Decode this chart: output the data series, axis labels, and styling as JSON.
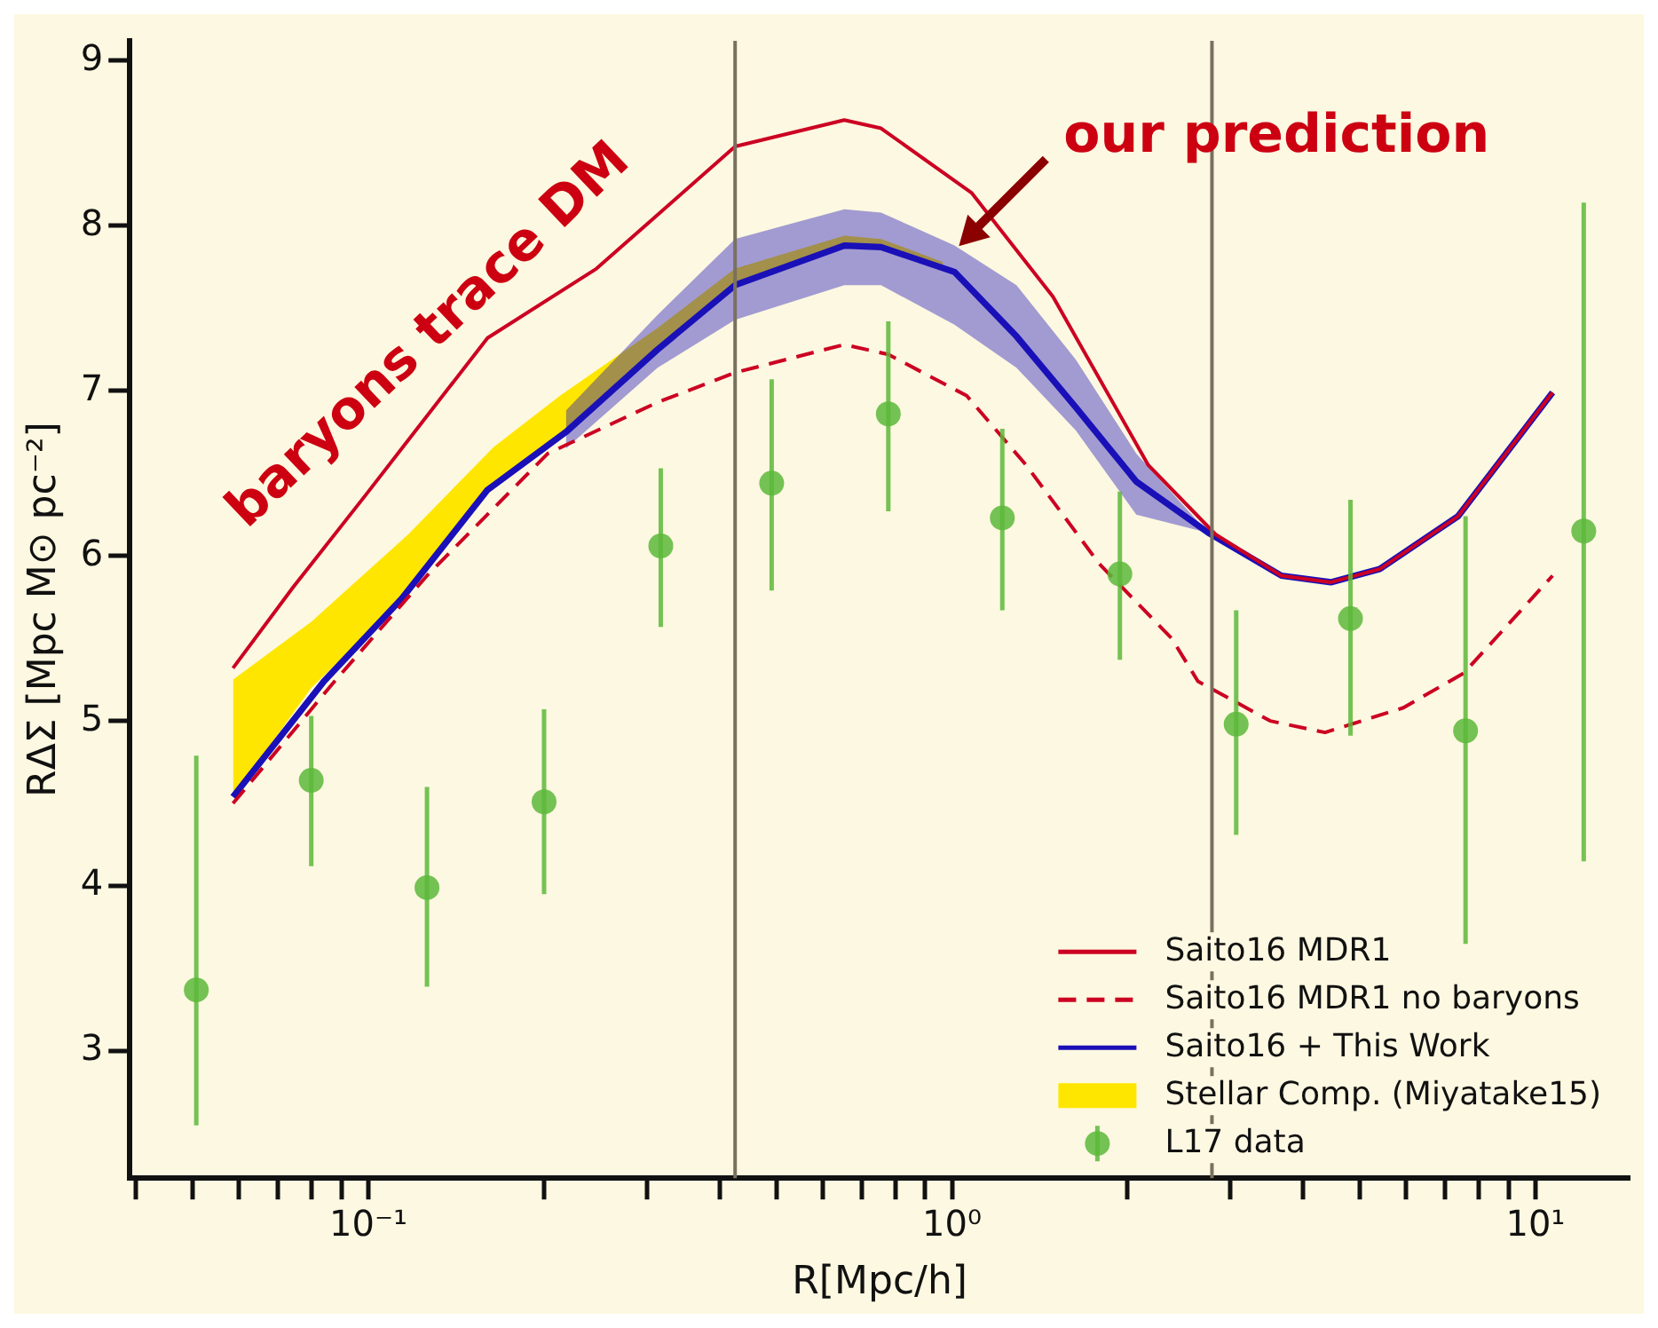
{
  "chart_data": {
    "type": "line",
    "xlabel": "R[Mpc/h]",
    "ylabel": "RΔΣ [Mpc M⊙ pc⁻²]",
    "log": "x",
    "xlim": [
      0.039,
      14.5
    ],
    "ylim": [
      2.23,
      9.12
    ],
    "xticks": [
      {
        "value": 0.04,
        "label": null
      },
      {
        "value": 0.05,
        "label": null
      },
      {
        "value": 0.06,
        "label": null
      },
      {
        "value": 0.07,
        "label": null
      },
      {
        "value": 0.08,
        "label": null
      },
      {
        "value": 0.09,
        "label": null
      },
      {
        "value": 0.1,
        "label": "10⁻¹"
      },
      {
        "value": 0.2,
        "label": null
      },
      {
        "value": 0.3,
        "label": null
      },
      {
        "value": 0.4,
        "label": null
      },
      {
        "value": 0.5,
        "label": null
      },
      {
        "value": 0.6,
        "label": null
      },
      {
        "value": 0.7,
        "label": null
      },
      {
        "value": 0.8,
        "label": null
      },
      {
        "value": 0.9,
        "label": null
      },
      {
        "value": 1,
        "label": "10⁰"
      },
      {
        "value": 2,
        "label": null
      },
      {
        "value": 3,
        "label": null
      },
      {
        "value": 4,
        "label": null
      },
      {
        "value": 5,
        "label": null
      },
      {
        "value": 6,
        "label": null
      },
      {
        "value": 7,
        "label": null
      },
      {
        "value": 8,
        "label": null
      },
      {
        "value": 9,
        "label": null
      },
      {
        "value": 10,
        "label": "10¹"
      }
    ],
    "yticks": [
      3,
      4,
      5,
      6,
      7,
      8,
      9
    ],
    "legend": "bottom right",
    "series": [
      {
        "name": "Saito16 MDR1",
        "type": "line",
        "color": "#cc0022",
        "line_style": "solid",
        "x": [
          0.0586,
          0.0743,
          0.099,
          0.16,
          0.246,
          0.425,
          0.654,
          0.756,
          1.08,
          1.49,
          2.17,
          2.83,
          3.67,
          4.46,
          5.41,
          7.37,
          10.7
        ],
        "values": [
          5.32,
          5.81,
          6.37,
          7.32,
          7.74,
          8.48,
          8.64,
          8.59,
          8.2,
          7.57,
          6.55,
          6.13,
          5.88,
          5.84,
          5.92,
          6.24,
          6.99
        ]
      },
      {
        "name": "Saito16 MDR1 no baryons",
        "type": "line",
        "color": "#cc0022",
        "line_style": "dashed",
        "x": [
          0.0586,
          0.0875,
          0.126,
          0.203,
          0.313,
          0.425,
          0.654,
          0.778,
          1.06,
          1.34,
          1.79,
          2.38,
          2.64,
          3.51,
          4.36,
          5.94,
          7.54,
          10.7
        ],
        "values": [
          4.5,
          5.24,
          5.88,
          6.62,
          6.93,
          7.11,
          7.28,
          7.22,
          6.97,
          6.55,
          5.95,
          5.5,
          5.24,
          5.0,
          4.93,
          5.08,
          5.29,
          5.88
        ]
      },
      {
        "name": "Saito16 + This Work",
        "type": "line",
        "color": "#1a10b8",
        "line_style": "solid",
        "x": [
          0.0586,
          0.0839,
          0.114,
          0.16,
          0.218,
          0.313,
          0.425,
          0.654,
          0.756,
          1.01,
          1.29,
          1.63,
          2.07,
          2.75,
          3.67,
          4.46,
          5.41,
          7.37,
          10.7
        ],
        "values": [
          4.54,
          5.24,
          5.74,
          6.4,
          6.75,
          7.25,
          7.64,
          7.88,
          7.87,
          7.72,
          7.33,
          6.9,
          6.45,
          6.14,
          5.88,
          5.84,
          5.92,
          6.24,
          6.99
        ],
        "lower": [
          null,
          null,
          null,
          null,
          6.65,
          7.14,
          7.43,
          7.64,
          7.64,
          7.4,
          7.14,
          6.76,
          6.25,
          6.14,
          null,
          null,
          null,
          null,
          null
        ],
        "upper": [
          null,
          null,
          null,
          null,
          6.88,
          7.46,
          7.92,
          8.1,
          8.08,
          7.88,
          7.64,
          7.19,
          6.62,
          6.14,
          null,
          null,
          null,
          null,
          null
        ]
      },
      {
        "name": "Stellar Comp. (Miyatake15)",
        "type": "area",
        "color": "#ffe600",
        "x": [
          0.0586,
          0.0798,
          0.117,
          0.164,
          0.213,
          0.313,
          0.425,
          0.654,
          0.756,
          0.965
        ],
        "values": [
          null,
          null,
          null,
          null,
          null,
          null,
          null,
          null,
          null,
          null
        ],
        "upper": [
          5.25,
          5.6,
          6.13,
          6.66,
          6.97,
          7.38,
          7.74,
          7.94,
          7.92,
          7.78
        ],
        "lower": [
          4.54,
          5.2,
          5.77,
          6.45,
          6.72,
          7.25,
          7.64,
          7.88,
          7.87,
          7.74
        ]
      },
      {
        "name": "L17 data",
        "type": "scatter",
        "color": "#5cb83a",
        "marker": "circle",
        "x": [
          0.0507,
          0.0798,
          0.126,
          0.2,
          0.317,
          0.491,
          0.778,
          1.22,
          1.94,
          3.07,
          4.82,
          7.59,
          12.1
        ],
        "values": [
          3.37,
          4.64,
          3.99,
          4.51,
          6.06,
          6.44,
          6.86,
          6.23,
          5.89,
          4.98,
          5.62,
          4.94,
          6.15
        ],
        "errors": [
          [
            2.55,
            4.79
          ],
          [
            4.12,
            5.03
          ],
          [
            3.39,
            4.6
          ],
          [
            3.95,
            5.07
          ],
          [
            5.57,
            6.53
          ],
          [
            5.79,
            7.07
          ],
          [
            6.27,
            7.42
          ],
          [
            5.67,
            6.77
          ],
          [
            5.37,
            6.39
          ],
          [
            4.31,
            5.67
          ],
          [
            4.91,
            6.34
          ],
          [
            3.65,
            6.24
          ],
          [
            4.15,
            8.14
          ]
        ]
      }
    ],
    "ref_lines": [
      {
        "axis": "x",
        "value": 0.425,
        "color": "#7a7060"
      },
      {
        "axis": "x",
        "value": 2.79,
        "color": "#7a7060"
      }
    ],
    "annotations": [
      "baryons trace DM",
      {
        "text": "our prediction",
        "x": 0.965,
        "y": 7.78
      }
    ]
  }
}
